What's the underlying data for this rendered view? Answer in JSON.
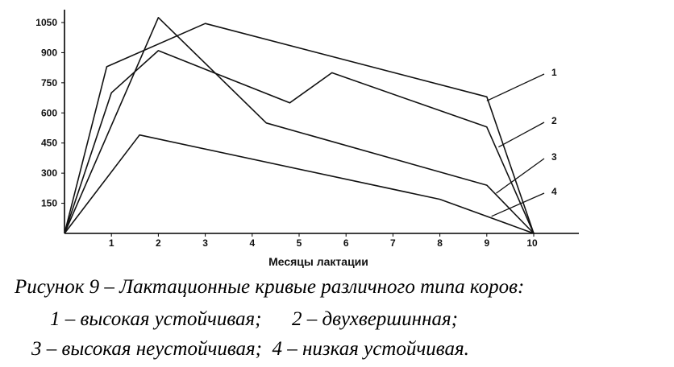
{
  "chart_data": {
    "type": "line",
    "xlabel": "Месяцы лактации",
    "ylabel": "",
    "xlim": [
      0,
      11
    ],
    "ylim": [
      0,
      1100
    ],
    "x_ticks": [
      1,
      2,
      3,
      4,
      5,
      6,
      7,
      8,
      9,
      10
    ],
    "y_ticks": [
      150,
      300,
      450,
      600,
      750,
      900,
      1050
    ],
    "grid": false,
    "series": [
      {
        "name": "1",
        "x": [
          0,
          0.9,
          3,
          9,
          10
        ],
        "y": [
          0,
          830,
          1045,
          680,
          0
        ]
      },
      {
        "name": "2",
        "x": [
          0,
          1,
          2,
          4.8,
          5.7,
          9,
          10
        ],
        "y": [
          0,
          700,
          910,
          650,
          800,
          530,
          0
        ]
      },
      {
        "name": "3",
        "x": [
          0,
          2,
          4.3,
          9,
          10
        ],
        "y": [
          0,
          1075,
          550,
          240,
          0
        ]
      },
      {
        "name": "4",
        "x": [
          0,
          1.6,
          8,
          10
        ],
        "y": [
          0,
          490,
          170,
          0
        ]
      }
    ]
  },
  "caption": {
    "title": "Рисунок 9 – Лактационные кривые различного типа коров:",
    "line1": "1 – высокая устойчивая;      2 – двухвершинная;",
    "line2": "3 – высокая неустойчивая;  4 – низкая устойчивая."
  }
}
